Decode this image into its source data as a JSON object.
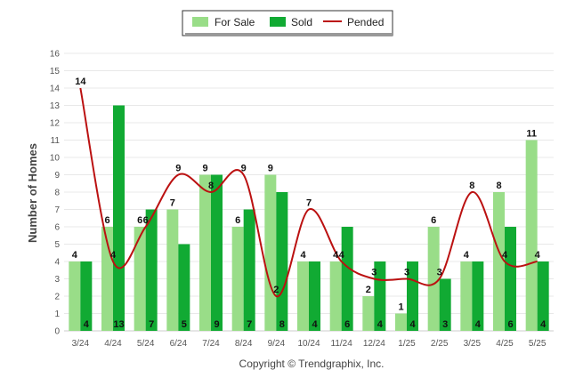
{
  "chart_data": {
    "type": "bar",
    "ylabel": "Number of Homes",
    "footer": "Copyright © Trendgraphix, Inc.",
    "ylim": [
      0,
      16
    ],
    "yticks": [
      0,
      1,
      2,
      3,
      4,
      5,
      6,
      7,
      8,
      9,
      10,
      11,
      12,
      13,
      14,
      15,
      16
    ],
    "grid": true,
    "legend_position": "top-center",
    "categories": [
      "3/24",
      "4/24",
      "5/24",
      "6/24",
      "7/24",
      "8/24",
      "9/24",
      "10/24",
      "11/24",
      "12/24",
      "1/25",
      "2/25",
      "3/25",
      "4/25",
      "5/25"
    ],
    "series": [
      {
        "name": "For Sale",
        "kind": "bar",
        "color": "#99dd88",
        "values": [
          4,
          6,
          6,
          7,
          9,
          6,
          9,
          4,
          4,
          2,
          1,
          6,
          4,
          8,
          11
        ]
      },
      {
        "name": "Sold",
        "kind": "bar",
        "color": "#11aa33",
        "values": [
          4,
          13,
          7,
          5,
          9,
          7,
          8,
          4,
          6,
          4,
          4,
          3,
          4,
          6,
          4
        ]
      },
      {
        "name": "Pended",
        "kind": "line",
        "color": "#bb1111",
        "values": [
          14,
          4,
          6,
          9,
          8,
          9,
          2,
          7,
          4,
          3,
          3,
          3,
          8,
          4,
          4
        ]
      }
    ]
  }
}
